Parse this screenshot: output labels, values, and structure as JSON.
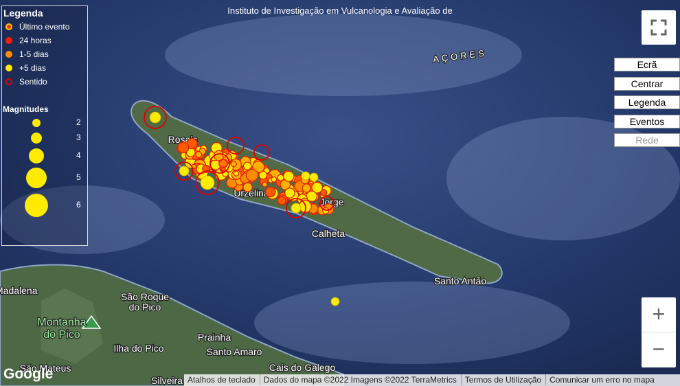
{
  "header": {
    "title": "Instituto de Investigação em Vulcanologia e Avaliação de"
  },
  "legend": {
    "title": "Legenda",
    "items": [
      "Último evento",
      "24 horas",
      "1-5 dias",
      "+5 dias",
      "Sentido"
    ],
    "magnitudes_title": "Magnitudes",
    "magnitudes": [
      2,
      3,
      4,
      5,
      6
    ]
  },
  "controls": {
    "buttons": [
      "Ecrã",
      "Centrar",
      "Legenda",
      "Eventos",
      "Rede"
    ],
    "zoom": [
      "+",
      "−"
    ]
  },
  "map": {
    "labels": [
      "AÇORES",
      "Rosais",
      "Urzelina",
      "Jorge",
      "Calheta",
      "Santo Antão",
      "Madalena",
      "São Roque",
      "do Pico",
      "Montanha",
      "do Pico",
      "Ilha do Pico",
      "Prainha",
      "Santo Amaro",
      "Cais do Galego",
      "São Mateus",
      "Silveira"
    ]
  },
  "footer": {
    "logo": "Google",
    "links": [
      "Atalhos de teclado",
      "Dados do mapa ©2022 Imagens ©2022 TerraMetrics",
      "Termos de Utilização",
      "Comunicar um erro no mapa"
    ]
  }
}
